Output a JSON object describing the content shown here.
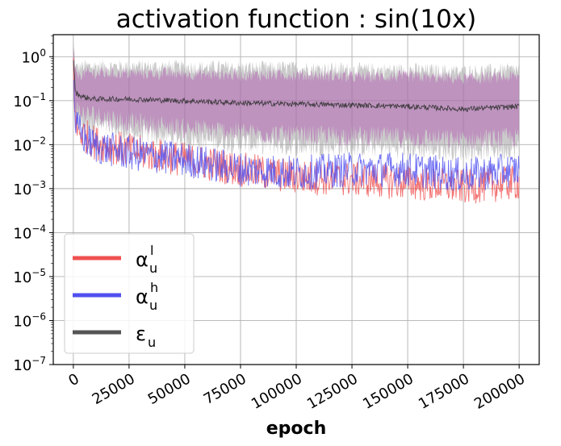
{
  "chart_data": {
    "type": "line",
    "title": "activation function : sin(10x)",
    "xlabel": "epoch",
    "ylabel": "",
    "xlim": [
      -9000,
      209000
    ],
    "ylim_log10": [
      -7,
      0.5
    ],
    "yscale": "log",
    "grid": true,
    "x_ticks": [
      0,
      25000,
      50000,
      75000,
      100000,
      125000,
      150000,
      175000,
      200000
    ],
    "x_tick_labels": [
      "0",
      "25000",
      "50000",
      "75000",
      "100000",
      "125000",
      "150000",
      "175000",
      "200000"
    ],
    "y_ticks_exp": [
      0,
      -1,
      -2,
      -3,
      -4,
      -5,
      -6,
      -7
    ],
    "y_tick_base": "10",
    "legend": {
      "placement": "lower-left",
      "entries": [
        {
          "key": "alpha_l",
          "base": "α",
          "sub": "u",
          "sup": "l",
          "color": "#f05050"
        },
        {
          "key": "alpha_h",
          "base": "α",
          "sub": "u",
          "sup": "h",
          "color": "#5050f0"
        },
        {
          "key": "eps",
          "base": "ε",
          "sub": "u",
          "sup": "",
          "color": "#555555"
        }
      ]
    },
    "series": [
      {
        "name": "ε_u (mean)",
        "color": "#333333",
        "x": [
          0,
          1000,
          5000,
          10000,
          25000,
          50000,
          75000,
          100000,
          125000,
          150000,
          175000,
          200000
        ],
        "values": [
          0.9,
          0.15,
          0.12,
          0.11,
          0.11,
          0.1,
          0.09,
          0.085,
          0.08,
          0.075,
          0.065,
          0.075
        ],
        "band_upper": [
          2.0,
          0.55,
          0.6,
          0.6,
          0.6,
          0.58,
          0.55,
          0.55,
          0.5,
          0.5,
          0.45,
          0.5
        ],
        "band_lower": [
          0.1,
          0.04,
          0.03,
          0.03,
          0.02,
          0.015,
          0.012,
          0.01,
          0.01,
          0.009,
          0.008,
          0.009
        ]
      },
      {
        "name": "α_u^l",
        "color": "#f05050",
        "x": [
          0,
          1000,
          5000,
          10000,
          25000,
          50000,
          75000,
          100000,
          125000,
          150000,
          175000,
          200000
        ],
        "values": [
          0.9,
          0.025,
          0.018,
          0.012,
          0.008,
          0.005,
          0.003,
          0.002,
          0.0018,
          0.0015,
          0.0012,
          0.0015
        ]
      },
      {
        "name": "α_u^h",
        "color": "#5050f0",
        "x": [
          0,
          1000,
          5000,
          10000,
          25000,
          50000,
          75000,
          100000,
          125000,
          150000,
          175000,
          200000
        ],
        "values": [
          0.5,
          0.03,
          0.015,
          0.01,
          0.007,
          0.005,
          0.003,
          0.0025,
          0.003,
          0.003,
          0.0022,
          0.003
        ]
      }
    ]
  }
}
